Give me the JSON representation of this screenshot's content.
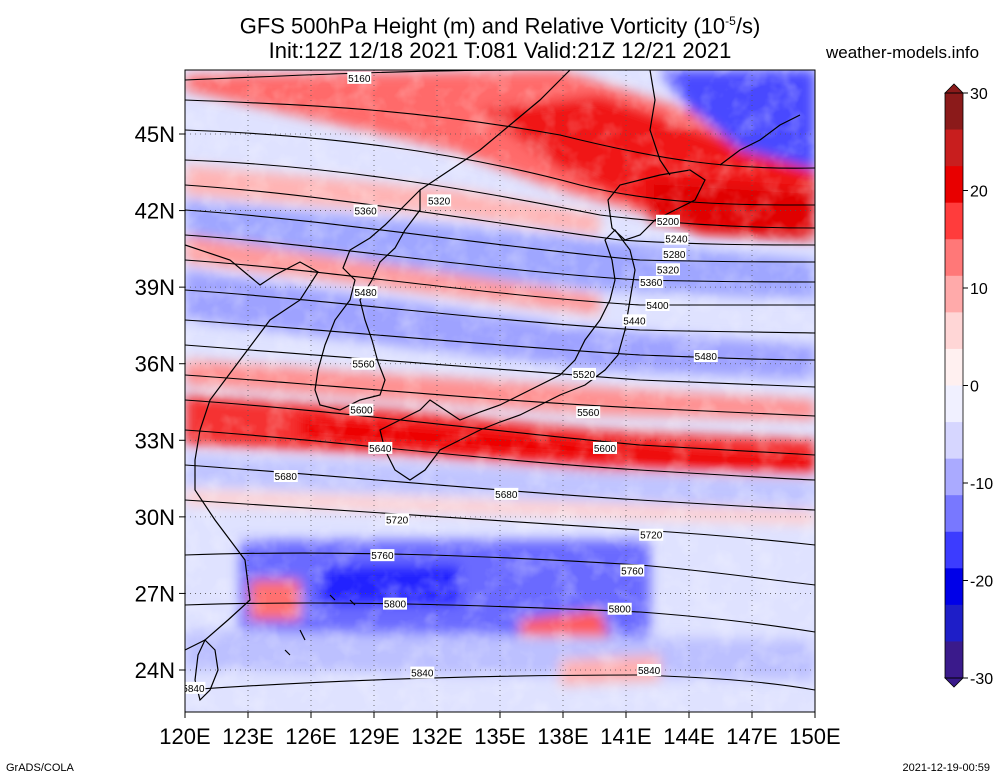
{
  "title_line1": "GFS 500hPa Height (m) and Relative Vorticity (10",
  "title_sup": "-5",
  "title_line1_end": "/s)",
  "title_line2": "Init:12Z 12/18 2021 T:081 Valid:21Z 12/21 2021",
  "brand": "weather-models.info",
  "footer_left": "GrADS/COLA",
  "footer_right": "2021-12-19-00:59",
  "map": {
    "lon_ticks": [
      "120E",
      "123E",
      "126E",
      "129E",
      "132E",
      "135E",
      "138E",
      "141E",
      "144E",
      "147E",
      "150E"
    ],
    "lat_ticks": [
      "45N",
      "42N",
      "39N",
      "36N",
      "33N",
      "30N",
      "27N",
      "24N"
    ],
    "lon_values": [
      120,
      123,
      126,
      129,
      132,
      135,
      138,
      141,
      144,
      147,
      150
    ],
    "lat_values": [
      45,
      42,
      39,
      36,
      33,
      30,
      27,
      24
    ],
    "contour_labels": [
      {
        "text": "5160",
        "lon": 128.3,
        "lat": 47.2
      },
      {
        "text": "5320",
        "lon": 132.1,
        "lat": 42.4
      },
      {
        "text": "5360",
        "lon": 128.6,
        "lat": 42.0
      },
      {
        "text": "5200",
        "lon": 143.0,
        "lat": 41.6
      },
      {
        "text": "5240",
        "lon": 143.4,
        "lat": 40.9
      },
      {
        "text": "5280",
        "lon": 143.3,
        "lat": 40.3
      },
      {
        "text": "5320",
        "lon": 143.0,
        "lat": 39.7
      },
      {
        "text": "5360",
        "lon": 142.2,
        "lat": 39.2
      },
      {
        "text": "5400",
        "lon": 142.5,
        "lat": 38.3
      },
      {
        "text": "5440",
        "lon": 141.4,
        "lat": 37.7
      },
      {
        "text": "5480",
        "lon": 128.6,
        "lat": 38.8
      },
      {
        "text": "5480",
        "lon": 144.8,
        "lat": 36.3
      },
      {
        "text": "5560",
        "lon": 128.5,
        "lat": 36.0
      },
      {
        "text": "5520",
        "lon": 139.0,
        "lat": 35.6
      },
      {
        "text": "5560",
        "lon": 139.2,
        "lat": 34.1
      },
      {
        "text": "5600",
        "lon": 128.4,
        "lat": 34.2
      },
      {
        "text": "5640",
        "lon": 129.3,
        "lat": 32.7
      },
      {
        "text": "5600",
        "lon": 140.0,
        "lat": 32.7
      },
      {
        "text": "5680",
        "lon": 124.8,
        "lat": 31.6
      },
      {
        "text": "5680",
        "lon": 135.3,
        "lat": 30.9
      },
      {
        "text": "5720",
        "lon": 130.1,
        "lat": 29.9
      },
      {
        "text": "5720",
        "lon": 142.2,
        "lat": 29.3
      },
      {
        "text": "5760",
        "lon": 129.4,
        "lat": 28.5
      },
      {
        "text": "5760",
        "lon": 141.3,
        "lat": 27.9
      },
      {
        "text": "5800",
        "lon": 130.0,
        "lat": 26.6
      },
      {
        "text": "5800",
        "lon": 140.7,
        "lat": 26.4
      },
      {
        "text": "5840",
        "lon": 120.4,
        "lat": 23.3
      },
      {
        "text": "5840",
        "lon": 131.3,
        "lat": 23.9
      },
      {
        "text": "5840",
        "lon": 142.1,
        "lat": 24.0
      }
    ]
  },
  "colorbar": {
    "ticks": [
      "30",
      "20",
      "10",
      "0",
      "-10",
      "-20",
      "-30"
    ],
    "tick_values": [
      30,
      20,
      10,
      0,
      -10,
      -20,
      -30
    ],
    "colors_top_to_bottom": [
      "#8b1a1a",
      "#c81e1e",
      "#e80000",
      "#ff3c3c",
      "#ff7878",
      "#ffaaaa",
      "#ffd6d6",
      "#fff0f0",
      "#f0f0ff",
      "#d6d6ff",
      "#aaaaff",
      "#7878ff",
      "#3c3cff",
      "#0000e8",
      "#1e1ec8",
      "#3a1a8b"
    ]
  }
}
